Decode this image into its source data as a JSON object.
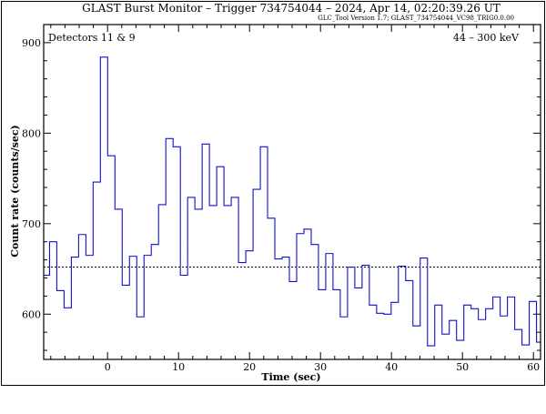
{
  "chart_data": {
    "type": "line",
    "style": "step-histogram",
    "title": "GLAST Burst Monitor  –  Trigger 734754044  –  2024, Apr 14, 02:20:39.26 UT",
    "subtitle": "GLC_Tool Version 1.7; GLAST_734754044_VC98_TRIG0.0.00",
    "xlabel": "Time (sec)",
    "ylabel": "Count rate (counts/sec)",
    "annotations": {
      "detectors": "Detectors 11 & 9",
      "energy_range": "44 – 300 keV"
    },
    "xlim": [
      -9,
      61
    ],
    "ylim": [
      550,
      920
    ],
    "xticks": [
      0,
      10,
      20,
      30,
      40,
      50,
      60
    ],
    "yticks": [
      600,
      700,
      800,
      900
    ],
    "xtick_labels": [
      "0",
      "10",
      "20",
      "30",
      "40",
      "50",
      "60"
    ],
    "ytick_labels": [
      "600",
      "700",
      "800",
      "900"
    ],
    "background_level": 652,
    "bin_width": 1.024,
    "bin_start": -9.2,
    "values": [
      643,
      680,
      626,
      607,
      663,
      688,
      665,
      746,
      884,
      775,
      716,
      632,
      664,
      597,
      665,
      677,
      721,
      794,
      785,
      643,
      729,
      716,
      788,
      720,
      763,
      720,
      729,
      657,
      670,
      738,
      785,
      706,
      661,
      663,
      636,
      689,
      694,
      677,
      627,
      667,
      627,
      597,
      652,
      629,
      654,
      610,
      601,
      600,
      613,
      653,
      637,
      587,
      662,
      565,
      610,
      578,
      593,
      571,
      610,
      606,
      594,
      606,
      619,
      598,
      619,
      583,
      566,
      614,
      569,
      609
    ],
    "colors": {
      "series": "#1010cc",
      "frame": "#000000",
      "background_line": "#000000"
    }
  }
}
